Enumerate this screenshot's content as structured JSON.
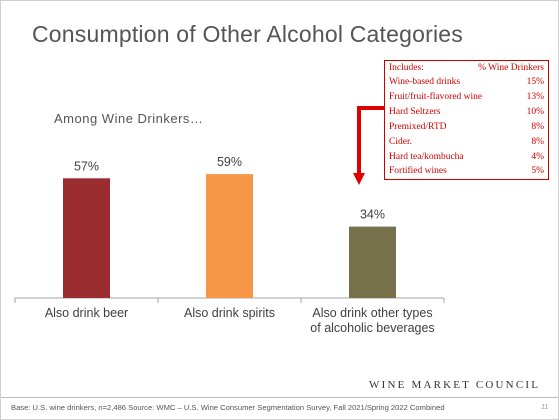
{
  "slide": {
    "title": "Consumption of Other Alcohol Categories",
    "subtitle": "Among Wine Drinkers…",
    "footnote": "Base: U.S. wine drinkers, n=2,486 Source: WMC – U.S. Wine Consumer Segmentation Survey, Fall 2021/Spring 2022 Combined",
    "logo": "Wine Market Council",
    "page_number": "11"
  },
  "info_box": {
    "header_label": "Includes:",
    "header_value": "% Wine Drinkers",
    "rows": [
      {
        "label": "Wine-based drinks",
        "value": "15%"
      },
      {
        "label": "Fruit/fruit-flavored wine",
        "value": "13%"
      },
      {
        "label": "Hard Seltzers",
        "value": "10%"
      },
      {
        "label": "Premixed/RTD",
        "value": "8%"
      },
      {
        "label": "Cider.",
        "value": "8%"
      },
      {
        "label": "Hard tea/kombucha",
        "value": "4%"
      },
      {
        "label": "Fortified wines",
        "value": "5%"
      }
    ]
  },
  "chart_data": {
    "type": "bar",
    "title": "Consumption of Other Alcohol Categories",
    "subtitle": "Among Wine Drinkers…",
    "categories": [
      "Also drink beer",
      "Also drink spirits",
      "Also drink other types of alcoholic beverages"
    ],
    "category_lines": [
      [
        "Also drink beer"
      ],
      [
        "Also drink spirits"
      ],
      [
        "Also drink other types",
        "of alcoholic beverages"
      ]
    ],
    "values": [
      57,
      59,
      34
    ],
    "data_labels": [
      "57%",
      "59%",
      "34%"
    ],
    "colors": [
      "#9b2d30",
      "#f79646",
      "#76704b"
    ],
    "ylim": [
      0,
      100
    ],
    "grid": false,
    "legend": "none",
    "callout_arrow_color": "#e00000"
  }
}
